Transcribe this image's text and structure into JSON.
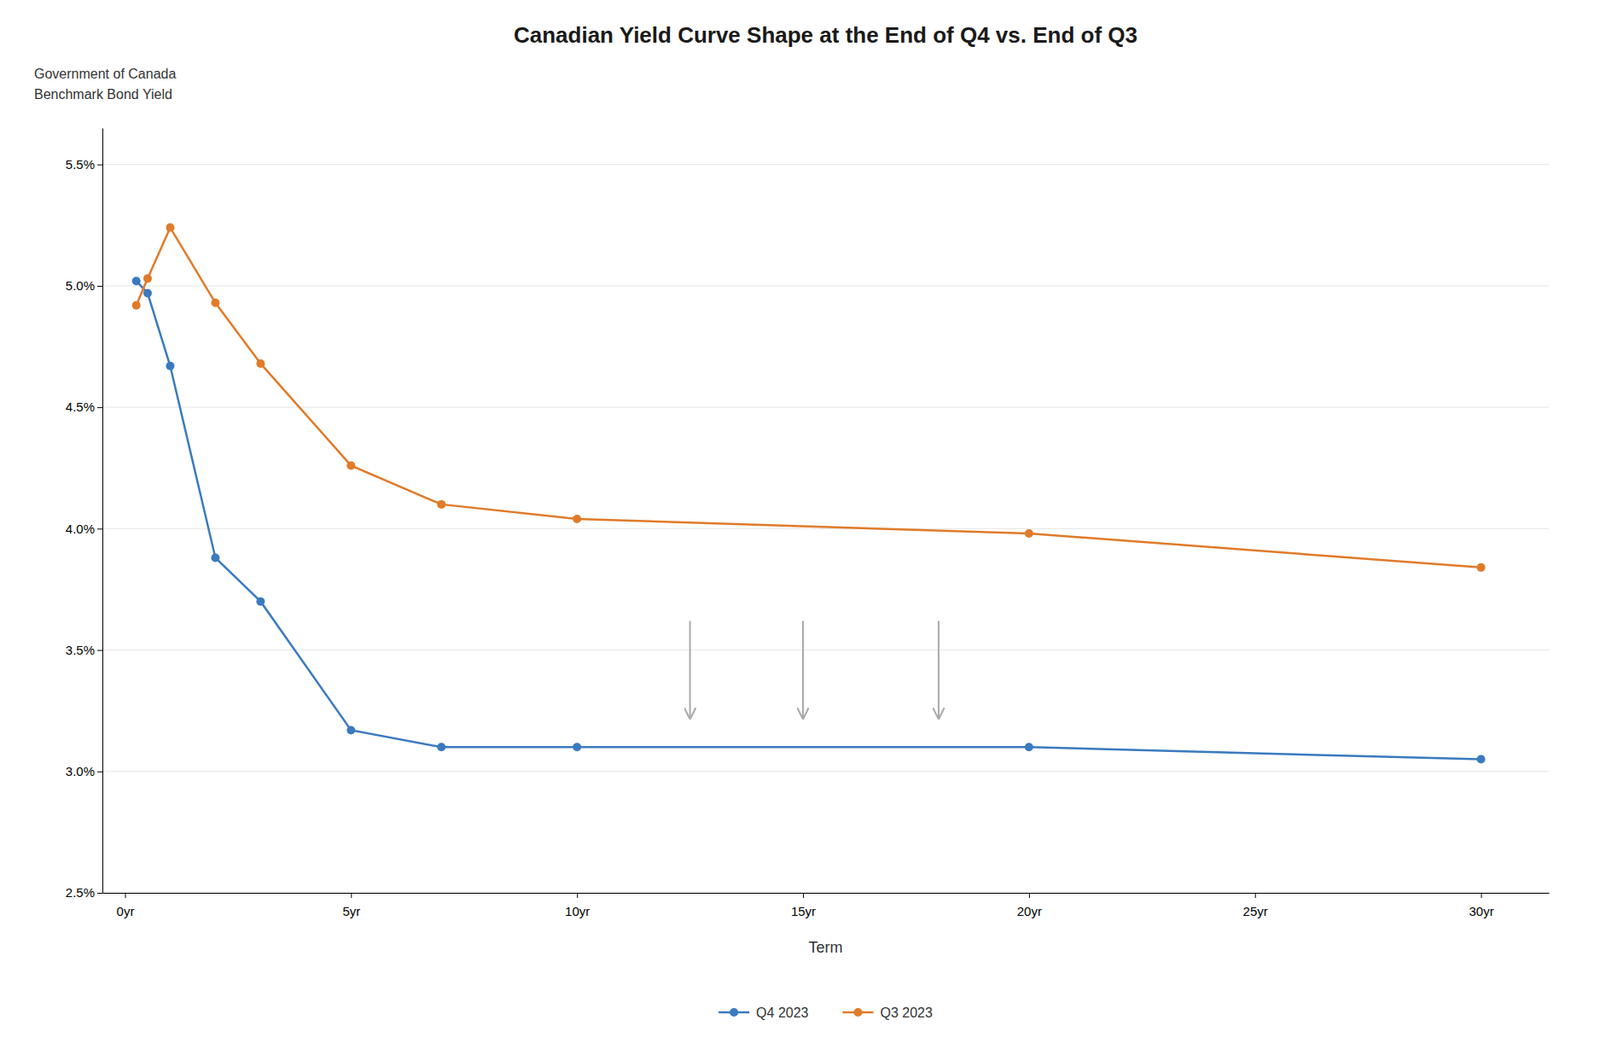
{
  "chart_data": {
    "type": "line",
    "title": "Canadian Yield Curve Shape at the End of Q4 vs. End of Q3",
    "ylabel": [
      "Government of Canada",
      "Benchmark Bond Yield"
    ],
    "xlabel": "Term",
    "x": [
      0.25,
      0.5,
      1,
      2,
      3,
      5,
      7,
      10,
      20,
      30
    ],
    "series": [
      {
        "name": "Q4 2023",
        "color": "#3a7abf",
        "marker": "circle",
        "values": [
          5.02,
          4.97,
          4.67,
          3.88,
          3.7,
          3.17,
          3.1,
          3.1,
          3.1,
          3.05
        ]
      },
      {
        "name": "Q3 2023",
        "color": "#e07b2a",
        "marker": "circle",
        "values": [
          4.92,
          5.03,
          5.24,
          4.93,
          4.68,
          4.26,
          4.1,
          4.04,
          3.98,
          3.84
        ]
      }
    ],
    "annotations": [
      {
        "type": "arrow",
        "color": "#aaaaaa",
        "x": 12.5,
        "y_start": 3.62,
        "y_end": 3.22
      },
      {
        "type": "arrow",
        "color": "#aaaaaa",
        "x": 15.0,
        "y_start": 3.62,
        "y_end": 3.22
      },
      {
        "type": "arrow",
        "color": "#aaaaaa",
        "x": 18.0,
        "y_start": 3.62,
        "y_end": 3.22
      }
    ],
    "xlim": [
      -0.5,
      31.5
    ],
    "xticks": [
      {
        "value": 0,
        "label": "0yr"
      },
      {
        "value": 5,
        "label": "5yr"
      },
      {
        "value": 10,
        "label": "10yr"
      },
      {
        "value": 15,
        "label": "15yr"
      },
      {
        "value": 20,
        "label": "20yr"
      },
      {
        "value": 25,
        "label": "25yr"
      },
      {
        "value": 30,
        "label": "30yr"
      }
    ],
    "ylim": [
      2.5,
      5.65
    ],
    "yticks": [
      {
        "value": 2.5,
        "label": "2.5%"
      },
      {
        "value": 3.0,
        "label": "3.0%"
      },
      {
        "value": 3.5,
        "label": "3.5%"
      },
      {
        "value": 4.0,
        "label": "4.0%"
      },
      {
        "value": 4.5,
        "label": "4.5%"
      },
      {
        "value": 5.0,
        "label": "5.0%"
      },
      {
        "value": 5.5,
        "label": "5.5%"
      }
    ],
    "grid": true,
    "legend": "bottom"
  }
}
